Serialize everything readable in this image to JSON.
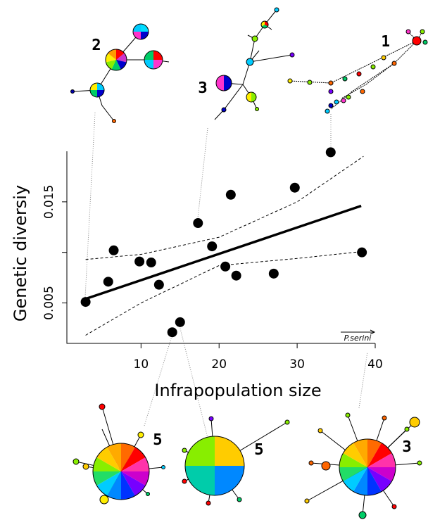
{
  "chart_data": {
    "type": "scatter",
    "x_label": "Infrapopulation size",
    "y_label": "Genetic diversiy",
    "annotation": "P.serini",
    "xlim": [
      0.5,
      40
    ],
    "ylim": [
      0.001,
      0.02
    ],
    "xticks": [
      10,
      20,
      30,
      40
    ],
    "yticks": [
      0.005,
      {
        "value": 0.01,
        "label": null
      },
      0.015
    ],
    "x": [
      2.9,
      5.8,
      6.5,
      9.8,
      11.3,
      12.3,
      14.0,
      15.0,
      17.3,
      19.1,
      20.8,
      21.5,
      22.2,
      27.0,
      29.7,
      34.3,
      38.3
    ],
    "y": [
      0.0051,
      0.0071,
      0.0102,
      0.0091,
      0.009,
      0.0068,
      0.0021,
      0.0031,
      0.0129,
      0.0106,
      0.0086,
      0.0157,
      0.0077,
      0.0079,
      0.0164,
      0.0199,
      0.01
    ],
    "color": "#000000",
    "fit": {
      "x": [
        2.9,
        38.2
      ],
      "y": [
        0.0054,
        0.0146
      ]
    },
    "ci_upper": {
      "x": [
        2.9,
        10,
        20,
        30,
        38.5
      ],
      "y": [
        0.0093,
        0.0098,
        0.0115,
        0.015,
        0.0195
      ]
    },
    "ci_lower": {
      "x": [
        2.9,
        10,
        20,
        30,
        38.5
      ],
      "y": [
        0.0018,
        0.005,
        0.0087,
        0.0094,
        0.0101
      ]
    },
    "network_labels": [
      "2",
      "3",
      "1",
      "5",
      "5",
      "3"
    ]
  }
}
